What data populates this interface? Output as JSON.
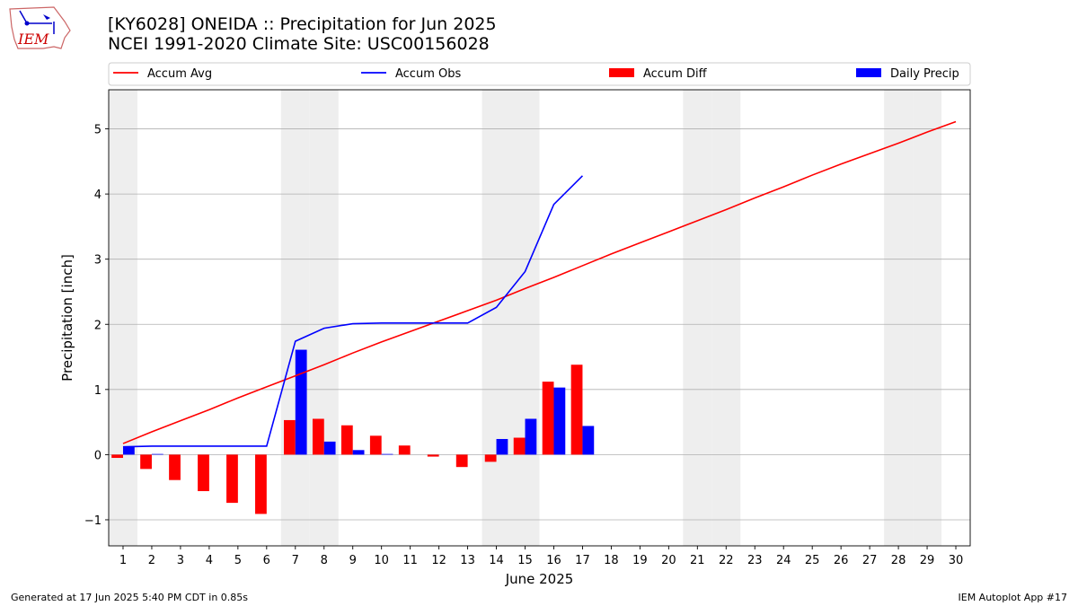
{
  "header": {
    "title_line1": "[KY6028] ONEIDA :: Precipitation for Jun 2025",
    "title_line2": "NCEI 1991-2020 Climate Site: USC00156028",
    "logo_text": "IEM"
  },
  "footer": {
    "generated": "Generated at 17 Jun 2025 5:40 PM CDT in 0.85s",
    "app": "IEM Autoplot App #17"
  },
  "colors": {
    "avg": "#ff0000",
    "obs": "#0000ff",
    "diff": "#ff0000",
    "daily": "#0000ff",
    "weekend_shade": "#eeeeee",
    "grid": "#b0b0b0"
  },
  "chart_data": {
    "type": "bar",
    "title": "[KY6028] ONEIDA :: Precipitation for Jun 2025",
    "subtitle": "NCEI 1991-2020 Climate Site: USC00156028",
    "xlabel": "June 2025",
    "ylabel": "Precipitation [inch]",
    "x": [
      1,
      2,
      3,
      4,
      5,
      6,
      7,
      8,
      9,
      10,
      11,
      12,
      13,
      14,
      15,
      16,
      17,
      18,
      19,
      20,
      21,
      22,
      23,
      24,
      25,
      26,
      27,
      28,
      29,
      30
    ],
    "xlim": [
      0.5,
      30.5
    ],
    "ylim": [
      -1.4,
      5.6
    ],
    "yticks": [
      -1,
      0,
      1,
      2,
      3,
      4,
      5
    ],
    "grid": "horizontal",
    "legend_position": "top",
    "weekend_days": [
      1,
      7,
      8,
      14,
      15,
      21,
      22,
      28,
      29
    ],
    "series": [
      {
        "name": "Accum Avg",
        "type": "line",
        "color": "#ff0000",
        "x": [
          1,
          2,
          3,
          4,
          5,
          6,
          7,
          8,
          9,
          10,
          11,
          12,
          13,
          14,
          15,
          16,
          17,
          18,
          19,
          20,
          21,
          22,
          23,
          24,
          25,
          26,
          27,
          28,
          29,
          30
        ],
        "values": [
          0.17,
          0.35,
          0.52,
          0.69,
          0.87,
          1.04,
          1.21,
          1.38,
          1.56,
          1.73,
          1.89,
          2.05,
          2.21,
          2.37,
          2.55,
          2.72,
          2.9,
          3.08,
          3.25,
          3.42,
          3.59,
          3.76,
          3.94,
          4.11,
          4.29,
          4.46,
          4.62,
          4.78,
          4.95,
          5.11
        ]
      },
      {
        "name": "Accum Obs",
        "type": "line",
        "color": "#0000ff",
        "x": [
          1,
          2,
          3,
          4,
          5,
          6,
          7,
          8,
          9,
          10,
          11,
          12,
          13,
          14,
          15,
          16,
          17
        ],
        "values": [
          0.12,
          0.13,
          0.13,
          0.13,
          0.13,
          0.13,
          1.74,
          1.94,
          2.01,
          2.02,
          2.02,
          2.02,
          2.02,
          2.26,
          2.81,
          3.84,
          4.28
        ]
      },
      {
        "name": "Accum Diff",
        "type": "bar",
        "color": "#ff0000",
        "x": [
          1,
          2,
          3,
          4,
          5,
          6,
          7,
          8,
          9,
          10,
          11,
          12,
          13,
          14,
          15,
          16,
          17
        ],
        "values": [
          -0.05,
          -0.22,
          -0.39,
          -0.56,
          -0.74,
          -0.91,
          0.53,
          0.55,
          0.45,
          0.29,
          0.14,
          -0.03,
          -0.19,
          -0.11,
          0.26,
          1.12,
          1.38
        ]
      },
      {
        "name": "Daily Precip",
        "type": "bar",
        "color": "#0000ff",
        "x": [
          1,
          2,
          3,
          4,
          5,
          6,
          7,
          8,
          9,
          10,
          11,
          12,
          13,
          14,
          15,
          16,
          17
        ],
        "values": [
          0.12,
          0.01,
          0.0,
          0.0,
          0.0,
          0.0,
          1.61,
          0.2,
          0.07,
          0.01,
          0.0,
          0.0,
          0.0,
          0.24,
          0.55,
          1.03,
          0.44
        ]
      }
    ]
  }
}
